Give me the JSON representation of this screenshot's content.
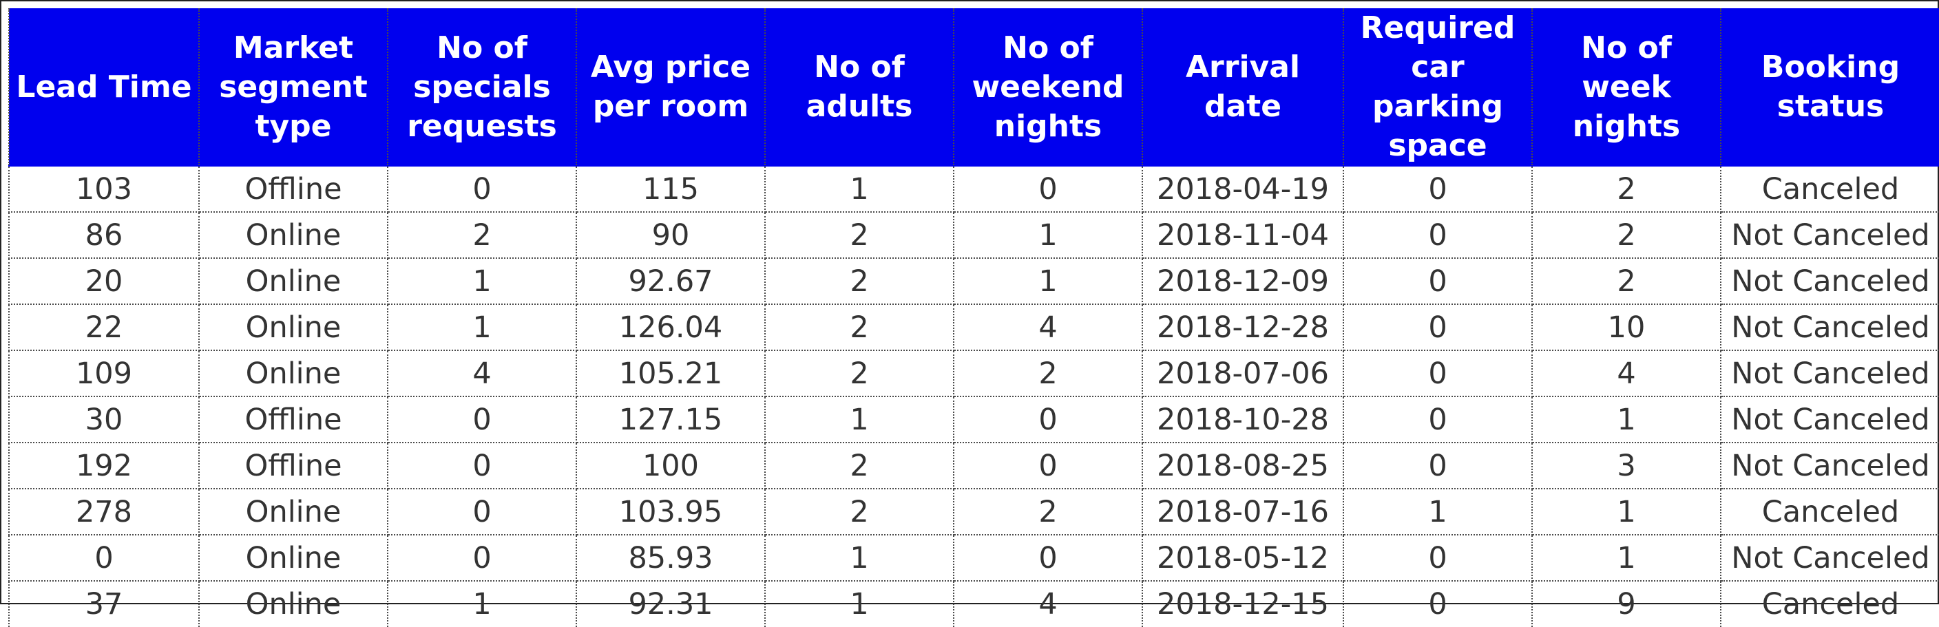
{
  "table": {
    "headers": [
      "Lead Time",
      "Market\nsegment\ntype",
      "No of\nspecials\nrequests",
      "Avg price\nper room",
      "No of\nadults",
      "No of\nweekend\nnights",
      "Arrival date",
      "Required\ncar parking\nspace",
      "No of week\nnights",
      "Booking\nstatus"
    ],
    "rows": [
      [
        "103",
        "Offline",
        "0",
        "115",
        "1",
        "0",
        "2018-04-19",
        "0",
        "2",
        "Canceled"
      ],
      [
        "86",
        "Online",
        "2",
        "90",
        "2",
        "1",
        "2018-11-04",
        "0",
        "2",
        "Not Canceled"
      ],
      [
        "20",
        "Online",
        "1",
        "92.67",
        "2",
        "1",
        "2018-12-09",
        "0",
        "2",
        "Not Canceled"
      ],
      [
        "22",
        "Online",
        "1",
        "126.04",
        "2",
        "4",
        "2018-12-28",
        "0",
        "10",
        "Not Canceled"
      ],
      [
        "109",
        "Online",
        "4",
        "105.21",
        "2",
        "2",
        "2018-07-06",
        "0",
        "4",
        "Not Canceled"
      ],
      [
        "30",
        "Offline",
        "0",
        "127.15",
        "1",
        "0",
        "2018-10-28",
        "0",
        "1",
        "Not Canceled"
      ],
      [
        "192",
        "Offline",
        "0",
        "100",
        "2",
        "0",
        "2018-08-25",
        "0",
        "3",
        "Not Canceled"
      ],
      [
        "278",
        "Online",
        "0",
        "103.95",
        "2",
        "2",
        "2018-07-16",
        "1",
        "1",
        "Canceled"
      ],
      [
        "0",
        "Online",
        "0",
        "85.93",
        "1",
        "0",
        "2018-05-12",
        "0",
        "1",
        "Not Canceled"
      ],
      [
        "37",
        "Online",
        "1",
        "92.31",
        "1",
        "4",
        "2018-12-15",
        "0",
        "9",
        "Canceled"
      ]
    ]
  },
  "colors": {
    "header_background": "#0000ee",
    "header_text": "#ffffff",
    "cell_text": "#333333",
    "grid_lines": "#4a4a4a"
  }
}
